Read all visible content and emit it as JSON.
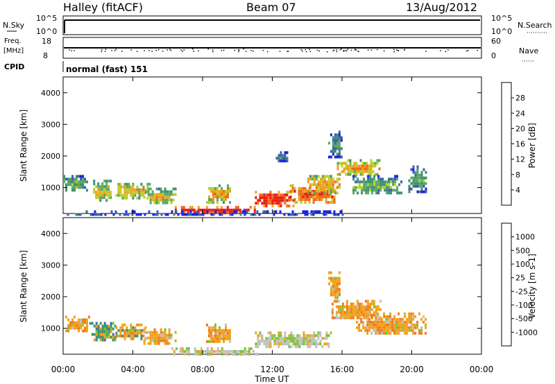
{
  "header": {
    "station": "Halley (fitACF)",
    "beam": "Beam 07",
    "date": "13/Aug/2012"
  },
  "params": {
    "nsky_label": "N.Sky",
    "nsky_top": "10^5",
    "nsky_bottom": "10^0",
    "nsearch_label": "N.Search",
    "nsearch_top": "10^5",
    "nsearch_bottom": "10^0",
    "freq_label_1": "Freq.",
    "freq_label_2": "[MHz]",
    "freq_top": "18",
    "freq_bottom": "8",
    "nave_label": "Nave",
    "nave_top": "60",
    "nave_bottom": "0",
    "cpid_label": "CPID",
    "cpid_value": "normal (fast) 151"
  },
  "chart_data": [
    {
      "type": "heatmap",
      "panel": "power",
      "ylabel": "Slant Range [km]",
      "xlabel": "Time UT",
      "ylim": [
        180,
        4500
      ],
      "yticks": [
        "1000",
        "2000",
        "3000",
        "4000"
      ],
      "xticks": [
        "00:00",
        "04:00",
        "08:00",
        "12:00",
        "16:00",
        "20:00",
        "00:00"
      ],
      "colorbar": {
        "title": "Power [dB]",
        "ticks": [
          "4",
          "8",
          "12",
          "16",
          "20",
          "24",
          "28"
        ],
        "colors": [
          "#1a22e6",
          "#3d5fb0",
          "#3e8f72",
          "#5aa863",
          "#b8cf2c",
          "#f0a21e",
          "#f06a1d",
          "#e81c14"
        ]
      },
      "blobs": [
        {
          "t0": 0.0,
          "t1": 1.4,
          "r0": 900,
          "r1": 1400,
          "level": 0.35
        },
        {
          "t0": 1.6,
          "t1": 2.8,
          "r0": 600,
          "r1": 1250,
          "level": 0.5
        },
        {
          "t0": 3.0,
          "t1": 5.0,
          "r0": 700,
          "r1": 1150,
          "level": 0.55
        },
        {
          "t0": 4.6,
          "t1": 6.4,
          "r0": 500,
          "r1": 1000,
          "level": 0.5
        },
        {
          "t0": 6.4,
          "t1": 11.0,
          "r0": 200,
          "r1": 420,
          "level": 0.95
        },
        {
          "t0": 8.2,
          "t1": 9.6,
          "r0": 550,
          "r1": 1100,
          "level": 0.6
        },
        {
          "t0": 11.0,
          "t1": 13.2,
          "r0": 450,
          "r1": 900,
          "level": 0.9
        },
        {
          "t0": 13.0,
          "t1": 15.6,
          "r0": 550,
          "r1": 1100,
          "level": 0.75
        },
        {
          "t0": 14.0,
          "t1": 15.8,
          "r0": 800,
          "r1": 1400,
          "level": 0.6
        },
        {
          "t0": 15.7,
          "t1": 18.2,
          "r0": 1400,
          "r1": 1900,
          "level": 0.6
        },
        {
          "t0": 16.6,
          "t1": 19.4,
          "r0": 800,
          "r1": 1400,
          "level": 0.35
        },
        {
          "t0": 19.8,
          "t1": 20.8,
          "r0": 900,
          "r1": 1700,
          "level": 0.3
        },
        {
          "t0": 15.2,
          "t1": 16.0,
          "r0": 2000,
          "r1": 2800,
          "level": 0.2
        },
        {
          "t0": 12.2,
          "t1": 12.8,
          "r0": 1850,
          "r1": 2150,
          "level": 0.2
        },
        {
          "t0": 0.1,
          "t1": 16.0,
          "r0": 180,
          "r1": 280,
          "level": 0.2
        }
      ]
    },
    {
      "type": "heatmap",
      "panel": "velocity",
      "ylabel": "Slant Range [km]",
      "xlabel": "Time UT",
      "ylim": [
        180,
        4500
      ],
      "yticks": [
        "1000",
        "2000",
        "3000",
        "4000"
      ],
      "xticks": [
        "00:00",
        "04:00",
        "08:00",
        "12:00",
        "16:00",
        "20:00",
        "00:00"
      ],
      "colorbar": {
        "title": "Velocity [m s-1]",
        "ticks": [
          "1000",
          "500",
          "100",
          "25",
          "-25",
          "-100",
          "-500",
          "-1000"
        ],
        "colors": [
          "#2a3fbf",
          "#3e6fa8",
          "#3e8f72",
          "#66cc33",
          "#c0c0c0",
          "#f0a21e",
          "#f07c1e",
          "#f04a14",
          "#e81c14"
        ]
      },
      "blobs": [
        {
          "t0": 0.0,
          "t1": 1.5,
          "r0": 900,
          "r1": 1400,
          "vel": "neg"
        },
        {
          "t0": 1.5,
          "t1": 3.0,
          "r0": 600,
          "r1": 1200,
          "vel": "pos"
        },
        {
          "t0": 3.0,
          "t1": 4.8,
          "r0": 700,
          "r1": 1150,
          "vel": "mix"
        },
        {
          "t0": 4.6,
          "t1": 6.4,
          "r0": 500,
          "r1": 1000,
          "vel": "neg"
        },
        {
          "t0": 6.2,
          "t1": 11.2,
          "r0": 200,
          "r1": 400,
          "vel": "zero"
        },
        {
          "t0": 8.2,
          "t1": 9.6,
          "r0": 550,
          "r1": 1150,
          "vel": "neg"
        },
        {
          "t0": 11.0,
          "t1": 15.4,
          "r0": 450,
          "r1": 900,
          "vel": "zero"
        },
        {
          "t0": 15.4,
          "t1": 18.2,
          "r0": 1300,
          "r1": 1900,
          "vel": "neg"
        },
        {
          "t0": 16.8,
          "t1": 20.8,
          "r0": 800,
          "r1": 1500,
          "vel": "neg"
        },
        {
          "t0": 15.2,
          "t1": 15.9,
          "r0": 2000,
          "r1": 2800,
          "vel": "neg"
        }
      ]
    }
  ]
}
